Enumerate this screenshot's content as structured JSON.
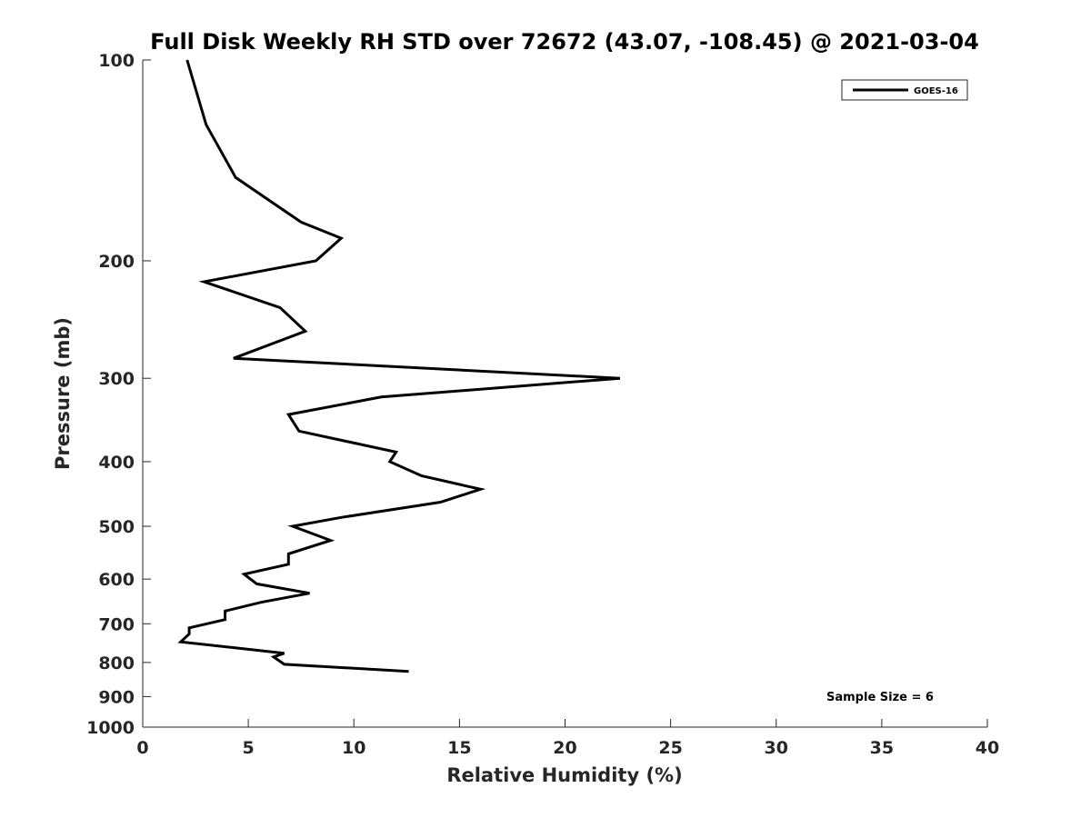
{
  "chart_data": {
    "type": "line",
    "title": "Full Disk Weekly RH STD over 72672 (43.07, -108.45) @ 2021-03-04",
    "xlabel": "Relative Humidity (%)",
    "ylabel": "Pressure (mb)",
    "xlim": [
      0,
      40
    ],
    "ylim": [
      100,
      1000
    ],
    "y_scale": "log",
    "y_reversed": true,
    "x_ticks": [
      0,
      5,
      10,
      15,
      20,
      25,
      30,
      35,
      40
    ],
    "y_ticks": [
      100,
      200,
      300,
      400,
      500,
      600,
      700,
      800,
      900,
      1000
    ],
    "grid": false,
    "legend": {
      "position": "top-right",
      "entries": [
        "GOES-16"
      ]
    },
    "annotation": "Sample Size = 6",
    "series": [
      {
        "name": "GOES-16",
        "color": "#000000",
        "points": [
          [
            2.1,
            100
          ],
          [
            3.0,
            125
          ],
          [
            4.4,
            150
          ],
          [
            7.5,
            175
          ],
          [
            9.4,
            185
          ],
          [
            8.2,
            200
          ],
          [
            2.9,
            215
          ],
          [
            6.5,
            235
          ],
          [
            7.7,
            255
          ],
          [
            4.3,
            280
          ],
          [
            22.6,
            300
          ],
          [
            11.3,
            320
          ],
          [
            6.9,
            340
          ],
          [
            7.4,
            360
          ],
          [
            12.0,
            387
          ],
          [
            11.7,
            400
          ],
          [
            13.2,
            420
          ],
          [
            16.0,
            440
          ],
          [
            14.1,
            460
          ],
          [
            9.4,
            485
          ],
          [
            7.1,
            500
          ],
          [
            8.9,
            525
          ],
          [
            6.9,
            550
          ],
          [
            6.9,
            570
          ],
          [
            4.8,
            590
          ],
          [
            5.4,
            610
          ],
          [
            7.9,
            630
          ],
          [
            5.6,
            650
          ],
          [
            3.9,
            670
          ],
          [
            3.9,
            690
          ],
          [
            2.2,
            710
          ],
          [
            2.2,
            725
          ],
          [
            1.8,
            745
          ],
          [
            6.7,
            775
          ],
          [
            6.2,
            785
          ],
          [
            6.7,
            805
          ],
          [
            12.6,
            825
          ]
        ]
      }
    ]
  }
}
